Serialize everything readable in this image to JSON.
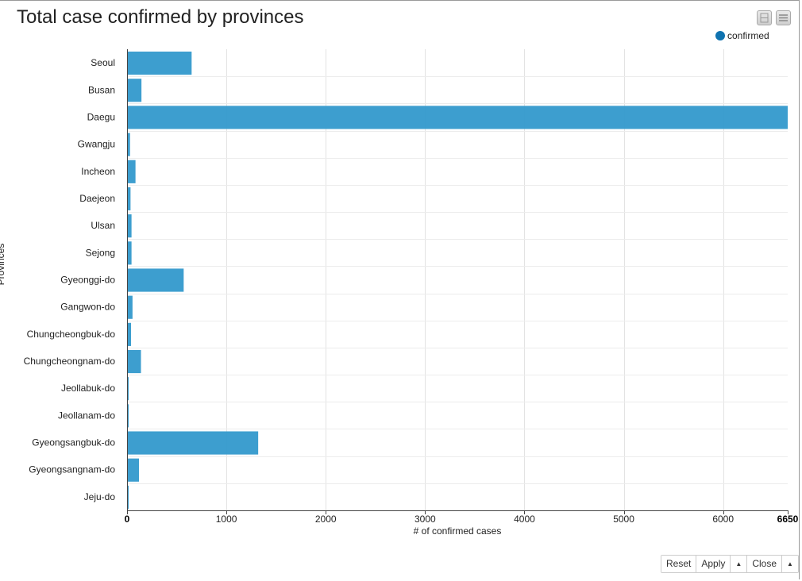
{
  "chart_data": {
    "type": "bar",
    "orientation": "horizontal",
    "title": "Total case confirmed by provinces",
    "xlabel": "# of confirmed cases",
    "ylabel": "Provinces",
    "categories": [
      "Seoul",
      "Busan",
      "Daegu",
      "Gwangju",
      "Incheon",
      "Daejeon",
      "Ulsan",
      "Sejong",
      "Gyeonggi-do",
      "Gangwon-do",
      "Chungcheongbuk-do",
      "Chungcheongnam-do",
      "Jeollabuk-do",
      "Jeollanam-do",
      "Gyeongsangbuk-do",
      "Gyeongsangnam-do",
      "Jeju-do"
    ],
    "series": [
      {
        "name": "confirmed",
        "values": [
          650,
          145,
          6650,
          30,
          85,
          35,
          45,
          45,
          570,
          55,
          40,
          140,
          15,
          15,
          1320,
          120,
          10
        ]
      }
    ],
    "xlim": [
      0,
      6650
    ],
    "xticks": [
      "0",
      "1000",
      "2000",
      "3000",
      "4000",
      "5000",
      "6000",
      "6650"
    ],
    "grid": true,
    "legend": "top-right",
    "color": "#3399cc"
  },
  "controls": {
    "reset": "Reset",
    "apply": "Apply",
    "close": "Close",
    "caret": "▲"
  }
}
